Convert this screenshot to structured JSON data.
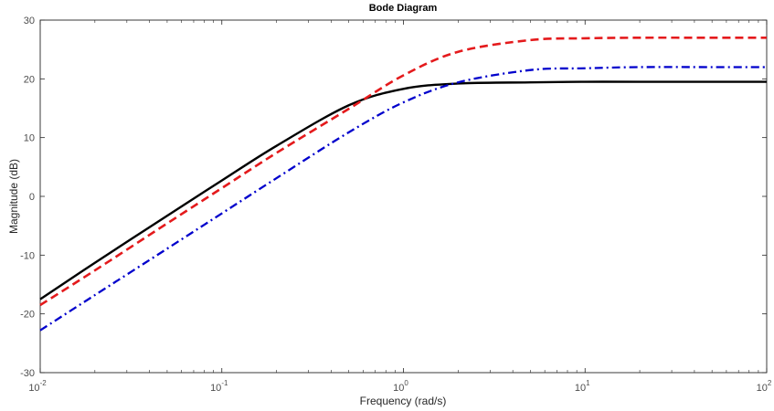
{
  "chart_data": {
    "type": "line",
    "title": "Bode Diagram",
    "xlabel": "Frequency  (rad/s)",
    "ylabel": "Magnitude (dB)",
    "xscale": "log",
    "xlim": [
      0.01,
      100
    ],
    "ylim": [
      -30,
      30
    ],
    "grid": false,
    "x_ticks": [
      {
        "base": "10",
        "exp": "-2",
        "value": 0.01
      },
      {
        "base": "10",
        "exp": "-1",
        "value": 0.1
      },
      {
        "base": "10",
        "exp": "0",
        "value": 1
      },
      {
        "base": "10",
        "exp": "1",
        "value": 10
      },
      {
        "base": "10",
        "exp": "2",
        "value": 100
      }
    ],
    "y_ticks": [
      "-30",
      "-20",
      "-10",
      "0",
      "10",
      "20",
      "30"
    ],
    "series": [
      {
        "color": "#000000",
        "line_style": "solid",
        "x": [
          0.01,
          0.02,
          0.05,
          0.1,
          0.2,
          0.5,
          1,
          2,
          5,
          10,
          20,
          50,
          100
        ],
        "y": [
          -17.5,
          -11.3,
          -3.3,
          2.7,
          8.6,
          15.5,
          18.3,
          19.2,
          19.4,
          19.5,
          19.5,
          19.5,
          19.5
        ]
      },
      {
        "color": "#e41a1c",
        "line_style": "dashed",
        "x": [
          0.01,
          0.02,
          0.05,
          0.1,
          0.2,
          0.5,
          1,
          2,
          5,
          10,
          20,
          50,
          100
        ],
        "y": [
          -18.5,
          -12.6,
          -4.6,
          1.4,
          7.4,
          14.9,
          20.6,
          24.6,
          26.6,
          26.9,
          27.0,
          27.0,
          27.0
        ]
      },
      {
        "color": "#0000cc",
        "line_style": "dash-dot",
        "x": [
          0.01,
          0.02,
          0.05,
          0.1,
          0.2,
          0.5,
          1,
          2,
          5,
          10,
          20,
          50,
          100
        ],
        "y": [
          -22.8,
          -16.8,
          -8.9,
          -2.9,
          3.1,
          10.9,
          16.0,
          19.4,
          21.5,
          21.8,
          22.0,
          22.0,
          22.0
        ]
      }
    ]
  }
}
